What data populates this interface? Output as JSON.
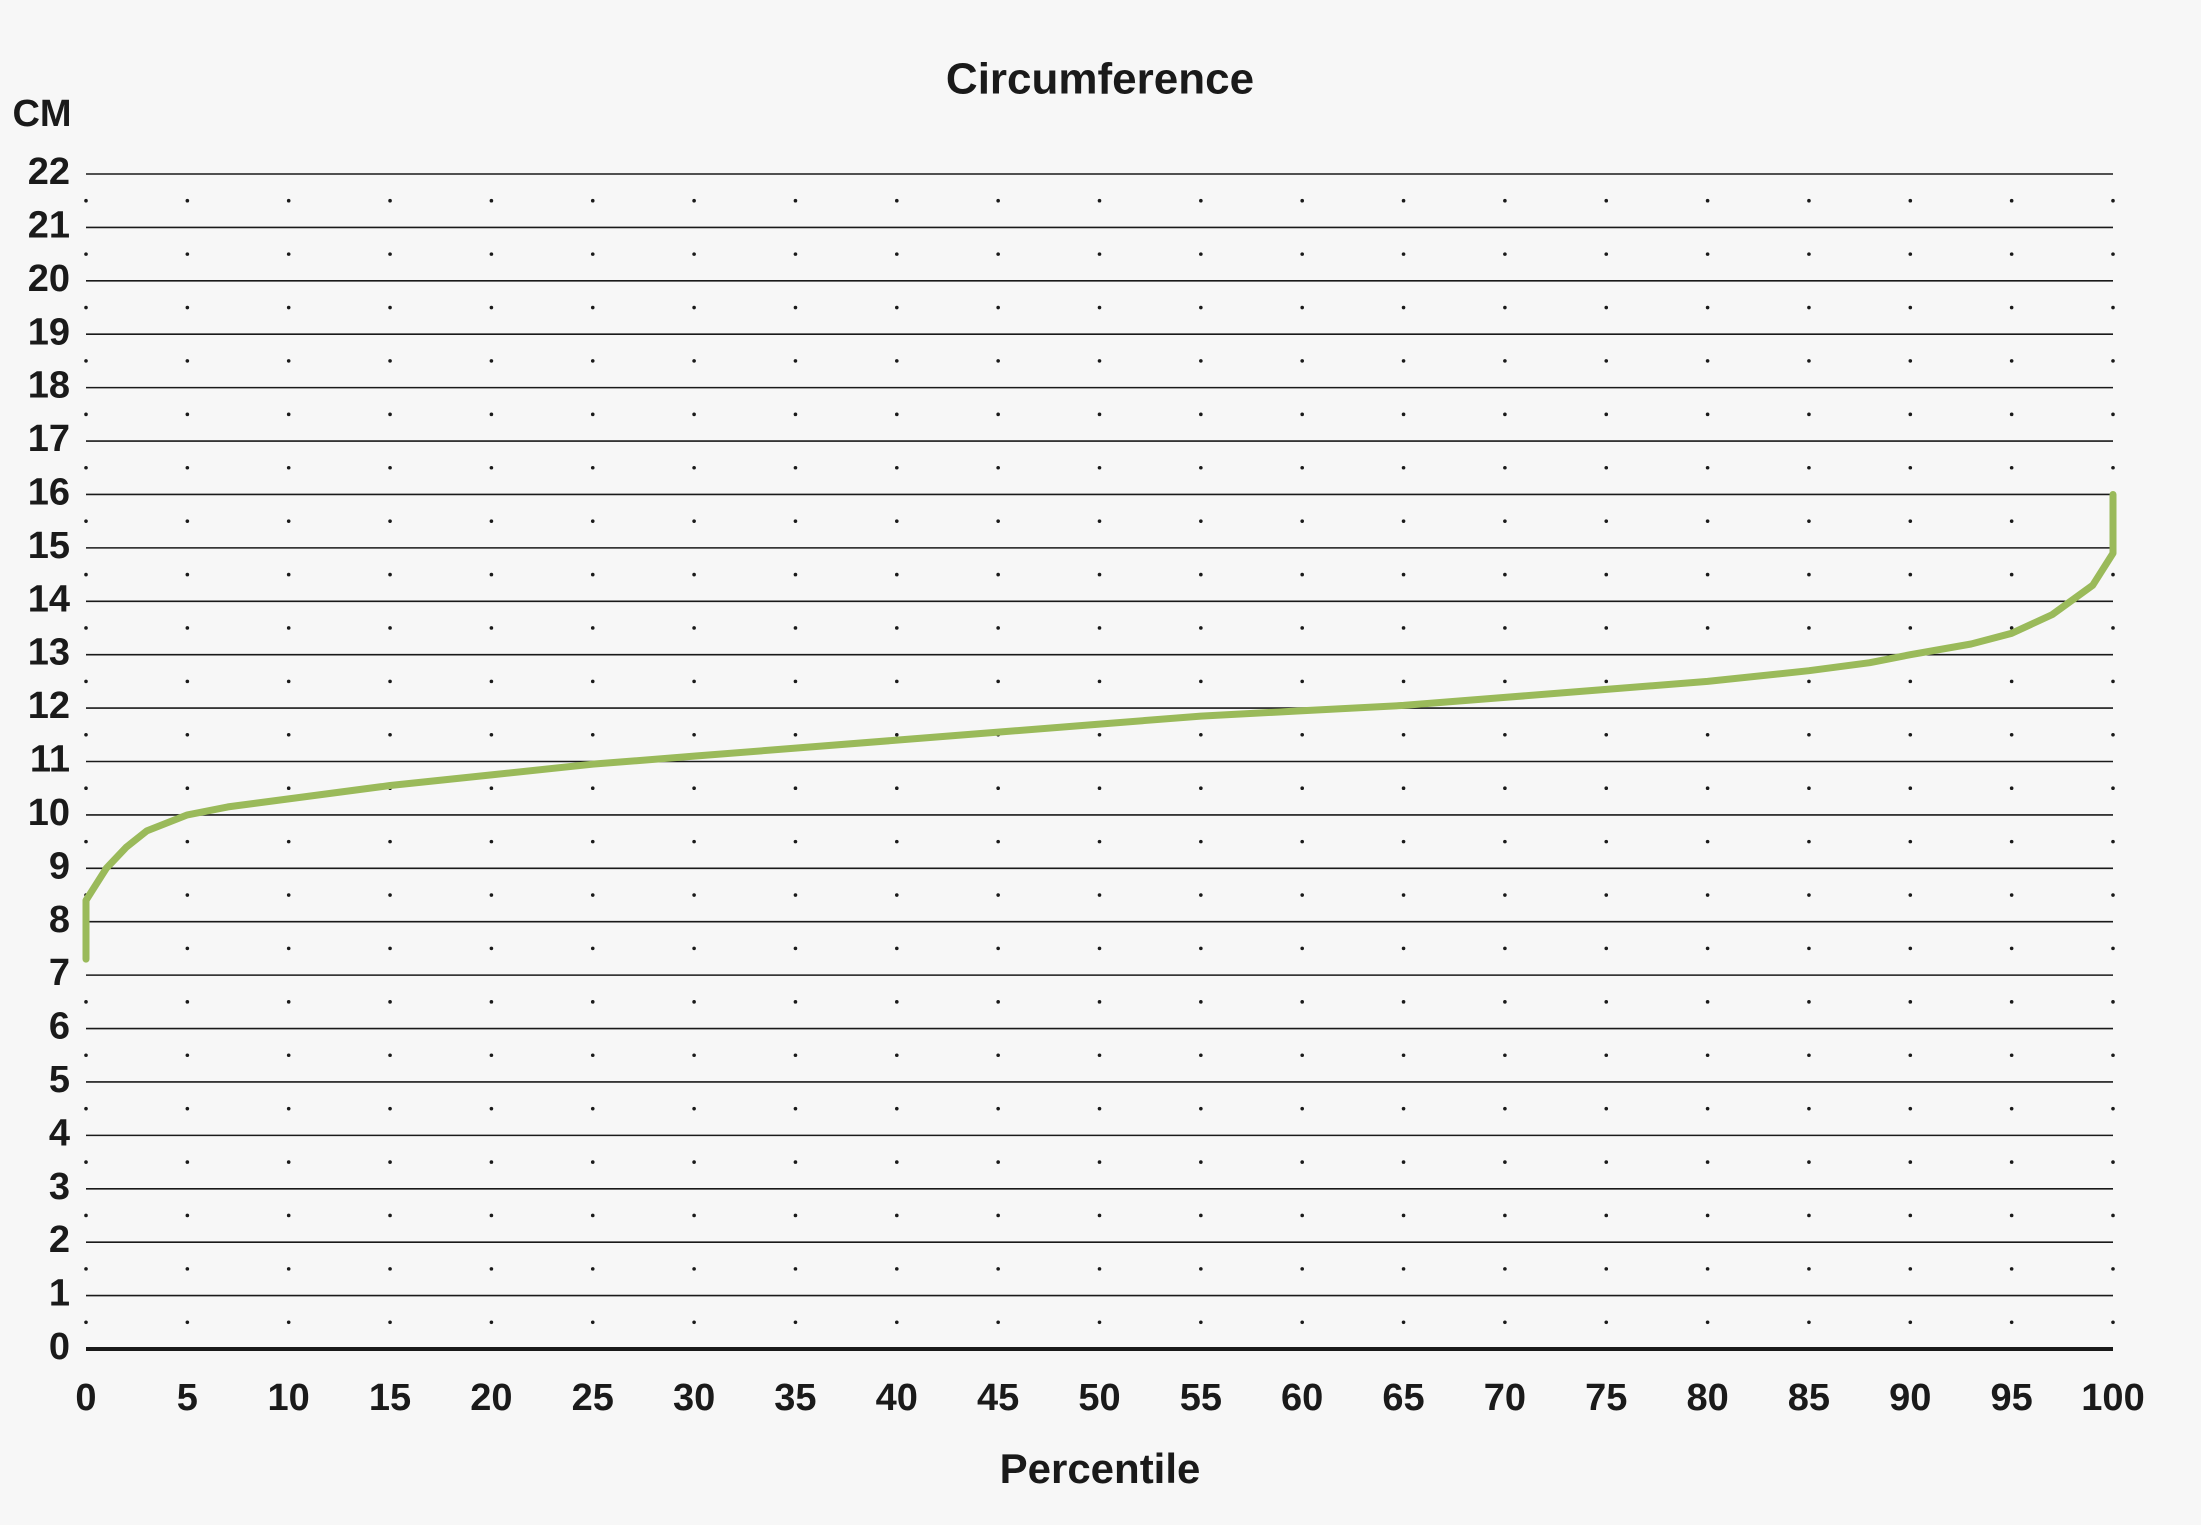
{
  "chart_data": {
    "type": "line",
    "title": "Circumference",
    "y_label": "CM",
    "x_label": "Percentile",
    "x": [
      0,
      0,
      1,
      2,
      3,
      5,
      7,
      10,
      15,
      20,
      25,
      30,
      35,
      40,
      45,
      50,
      55,
      60,
      65,
      70,
      75,
      80,
      85,
      88,
      90,
      93,
      95,
      97,
      99,
      100,
      100
    ],
    "series": [
      {
        "name": "Circumference",
        "color": "#9aba5a",
        "values": [
          7.3,
          8.4,
          9.0,
          9.4,
          9.7,
          10.0,
          10.15,
          10.3,
          10.55,
          10.75,
          10.95,
          11.1,
          11.25,
          11.4,
          11.55,
          11.7,
          11.85,
          11.95,
          12.05,
          12.2,
          12.35,
          12.5,
          12.7,
          12.85,
          13.0,
          13.2,
          13.4,
          13.75,
          14.3,
          14.9,
          16.0
        ]
      }
    ],
    "xlim": [
      0,
      100
    ],
    "ylim": [
      0,
      22
    ],
    "xticks": [
      0,
      5,
      10,
      15,
      20,
      25,
      30,
      35,
      40,
      45,
      50,
      55,
      60,
      65,
      70,
      75,
      80,
      85,
      90,
      95,
      100
    ],
    "yticks": [
      0,
      1,
      2,
      3,
      4,
      5,
      6,
      7,
      8,
      9,
      10,
      11,
      12,
      13,
      14,
      15,
      16,
      17,
      18,
      19,
      20,
      21,
      22
    ],
    "grid": true,
    "legend": false
  }
}
